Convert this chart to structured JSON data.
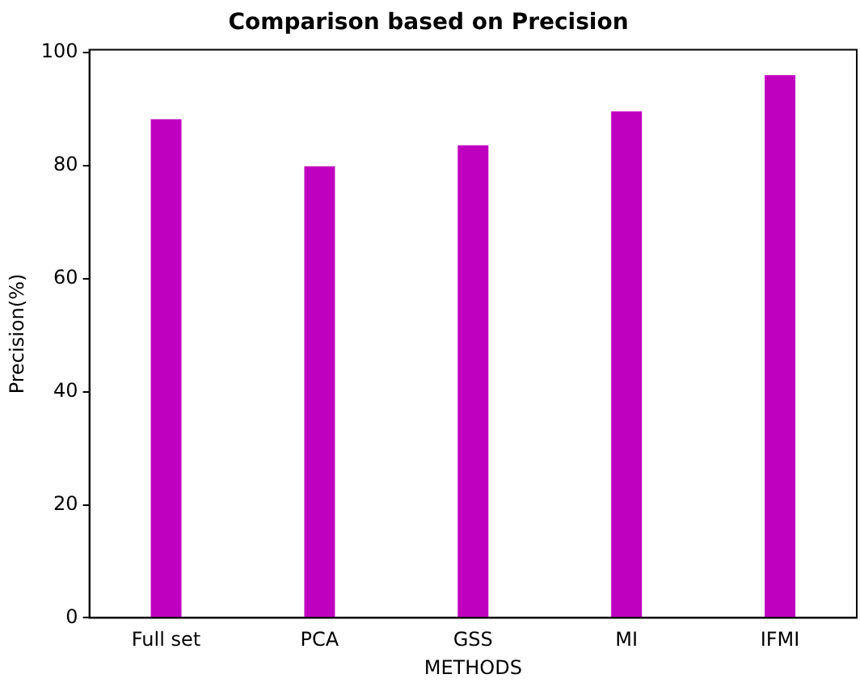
{
  "chart_data": {
    "type": "bar",
    "title": "Comparison based on Precision",
    "xlabel": "METHODS",
    "ylabel": "Precision(%)",
    "categories": [
      "Full set",
      "PCA",
      "GSS",
      "MI",
      "IFMI"
    ],
    "values": [
      88.2,
      79.9,
      83.6,
      89.6,
      96.0
    ],
    "color": "#bf00bf",
    "ylim": [
      0,
      100.5
    ],
    "yticks": [
      0,
      20,
      40,
      60,
      80,
      100
    ],
    "grid": false,
    "legend": false
  }
}
